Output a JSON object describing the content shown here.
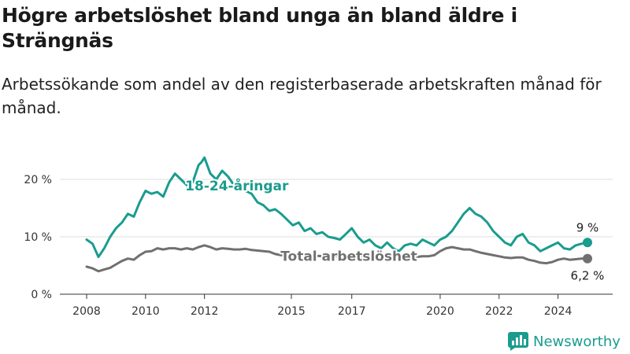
{
  "title": "Högre arbetslöshet bland unga än bland äldre i Strängnäs",
  "subtitle": "Arbetssökande som andel av den registerbaserade arbetskraften månad för månad.",
  "brand": {
    "name": "Newsworthy",
    "icon": "bar-chart-logo-icon",
    "color": "#1a9c8e"
  },
  "chart_data": {
    "type": "line",
    "x_ticks": [
      "2008",
      "2010",
      "2012",
      "2015",
      "2017",
      "2020",
      "2022",
      "2024"
    ],
    "x_tick_values": [
      2008.0,
      2010.0,
      2012.0,
      2014.95,
      2017.0,
      2020.0,
      2022.0,
      2024.0
    ],
    "x_range": [
      2008.0,
      2025.0
    ],
    "y_ticks": [
      "0 %",
      "10 %",
      "20 %"
    ],
    "y_tick_values": [
      0,
      10,
      20
    ],
    "ylim": [
      0,
      25
    ],
    "grid": true,
    "legend": "none",
    "series": [
      {
        "name": "18-24-åringar",
        "color": "#1a9c8e",
        "end_label": "9 %",
        "points": [
          [
            2008.0,
            9.5
          ],
          [
            2008.2,
            8.8
          ],
          [
            2008.4,
            6.5
          ],
          [
            2008.6,
            8.0
          ],
          [
            2008.8,
            10.0
          ],
          [
            2009.0,
            11.5
          ],
          [
            2009.2,
            12.5
          ],
          [
            2009.4,
            14.0
          ],
          [
            2009.6,
            13.5
          ],
          [
            2009.8,
            16.0
          ],
          [
            2010.0,
            18.0
          ],
          [
            2010.2,
            17.5
          ],
          [
            2010.4,
            17.8
          ],
          [
            2010.6,
            17.0
          ],
          [
            2010.8,
            19.5
          ],
          [
            2011.0,
            21.0
          ],
          [
            2011.2,
            20.0
          ],
          [
            2011.4,
            19.0
          ],
          [
            2011.6,
            19.5
          ],
          [
            2011.8,
            22.5
          ],
          [
            2011.9,
            23.0
          ],
          [
            2012.0,
            23.8
          ],
          [
            2012.2,
            21.0
          ],
          [
            2012.4,
            20.0
          ],
          [
            2012.6,
            21.5
          ],
          [
            2012.8,
            20.5
          ],
          [
            2013.0,
            19.0
          ],
          [
            2013.2,
            19.0
          ],
          [
            2013.4,
            18.0
          ],
          [
            2013.6,
            17.5
          ],
          [
            2013.8,
            16.0
          ],
          [
            2014.0,
            15.5
          ],
          [
            2014.2,
            14.5
          ],
          [
            2014.4,
            14.8
          ],
          [
            2014.6,
            14.0
          ],
          [
            2014.8,
            13.0
          ],
          [
            2015.0,
            12.0
          ],
          [
            2015.2,
            12.5
          ],
          [
            2015.4,
            11.0
          ],
          [
            2015.6,
            11.5
          ],
          [
            2015.8,
            10.5
          ],
          [
            2016.0,
            10.8
          ],
          [
            2016.2,
            10.0
          ],
          [
            2016.4,
            9.8
          ],
          [
            2016.6,
            9.5
          ],
          [
            2016.8,
            10.5
          ],
          [
            2017.0,
            11.5
          ],
          [
            2017.2,
            10.0
          ],
          [
            2017.4,
            9.0
          ],
          [
            2017.6,
            9.5
          ],
          [
            2017.8,
            8.5
          ],
          [
            2018.0,
            8.0
          ],
          [
            2018.2,
            9.0
          ],
          [
            2018.4,
            8.0
          ],
          [
            2018.6,
            7.5
          ],
          [
            2018.8,
            8.5
          ],
          [
            2019.0,
            8.8
          ],
          [
            2019.2,
            8.5
          ],
          [
            2019.4,
            9.5
          ],
          [
            2019.6,
            9.0
          ],
          [
            2019.8,
            8.5
          ],
          [
            2020.0,
            9.5
          ],
          [
            2020.2,
            10.0
          ],
          [
            2020.4,
            11.0
          ],
          [
            2020.6,
            12.5
          ],
          [
            2020.8,
            14.0
          ],
          [
            2021.0,
            15.0
          ],
          [
            2021.2,
            14.0
          ],
          [
            2021.4,
            13.5
          ],
          [
            2021.6,
            12.5
          ],
          [
            2021.8,
            11.0
          ],
          [
            2022.0,
            10.0
          ],
          [
            2022.2,
            9.0
          ],
          [
            2022.4,
            8.5
          ],
          [
            2022.6,
            10.0
          ],
          [
            2022.8,
            10.5
          ],
          [
            2023.0,
            9.0
          ],
          [
            2023.2,
            8.5
          ],
          [
            2023.4,
            7.5
          ],
          [
            2023.6,
            8.0
          ],
          [
            2023.8,
            8.5
          ],
          [
            2024.0,
            9.0
          ],
          [
            2024.2,
            8.0
          ],
          [
            2024.4,
            7.8
          ],
          [
            2024.6,
            8.5
          ],
          [
            2024.8,
            8.8
          ],
          [
            2025.0,
            9.0
          ]
        ]
      },
      {
        "name": "Total arbetslöshet",
        "color": "#707070",
        "end_label": "6,2 %",
        "points": [
          [
            2008.0,
            4.8
          ],
          [
            2008.2,
            4.5
          ],
          [
            2008.4,
            4.0
          ],
          [
            2008.6,
            4.3
          ],
          [
            2008.8,
            4.6
          ],
          [
            2009.0,
            5.2
          ],
          [
            2009.2,
            5.8
          ],
          [
            2009.4,
            6.2
          ],
          [
            2009.6,
            6.0
          ],
          [
            2009.8,
            6.8
          ],
          [
            2010.0,
            7.4
          ],
          [
            2010.2,
            7.5
          ],
          [
            2010.4,
            8.0
          ],
          [
            2010.6,
            7.8
          ],
          [
            2010.8,
            8.0
          ],
          [
            2011.0,
            8.0
          ],
          [
            2011.2,
            7.8
          ],
          [
            2011.4,
            8.0
          ],
          [
            2011.6,
            7.8
          ],
          [
            2011.8,
            8.2
          ],
          [
            2012.0,
            8.5
          ],
          [
            2012.2,
            8.2
          ],
          [
            2012.4,
            7.8
          ],
          [
            2012.6,
            8.0
          ],
          [
            2012.8,
            7.9
          ],
          [
            2013.0,
            7.8
          ],
          [
            2013.2,
            7.8
          ],
          [
            2013.4,
            7.9
          ],
          [
            2013.6,
            7.7
          ],
          [
            2013.8,
            7.6
          ],
          [
            2014.0,
            7.5
          ],
          [
            2014.2,
            7.4
          ],
          [
            2014.4,
            7.0
          ],
          [
            2014.6,
            6.8
          ],
          [
            2014.8,
            6.8
          ],
          [
            2015.0,
            6.8
          ],
          [
            2015.2,
            6.7
          ],
          [
            2015.4,
            6.8
          ],
          [
            2015.6,
            6.6
          ],
          [
            2015.8,
            6.7
          ],
          [
            2016.0,
            6.6
          ],
          [
            2016.2,
            6.8
          ],
          [
            2016.4,
            6.7
          ],
          [
            2016.6,
            6.5
          ],
          [
            2016.8,
            6.7
          ],
          [
            2017.0,
            6.9
          ],
          [
            2017.2,
            6.7
          ],
          [
            2017.4,
            6.5
          ],
          [
            2017.6,
            6.6
          ],
          [
            2017.8,
            6.5
          ],
          [
            2018.0,
            6.5
          ],
          [
            2018.2,
            6.4
          ],
          [
            2018.4,
            6.3
          ],
          [
            2018.6,
            6.2
          ],
          [
            2018.8,
            6.3
          ],
          [
            2019.0,
            6.4
          ],
          [
            2019.2,
            6.5
          ],
          [
            2019.4,
            6.6
          ],
          [
            2019.6,
            6.6
          ],
          [
            2019.8,
            6.8
          ],
          [
            2020.0,
            7.5
          ],
          [
            2020.2,
            8.0
          ],
          [
            2020.4,
            8.2
          ],
          [
            2020.6,
            8.0
          ],
          [
            2020.8,
            7.8
          ],
          [
            2021.0,
            7.8
          ],
          [
            2021.2,
            7.5
          ],
          [
            2021.4,
            7.2
          ],
          [
            2021.6,
            7.0
          ],
          [
            2021.8,
            6.8
          ],
          [
            2022.0,
            6.6
          ],
          [
            2022.2,
            6.4
          ],
          [
            2022.4,
            6.3
          ],
          [
            2022.6,
            6.4
          ],
          [
            2022.8,
            6.4
          ],
          [
            2023.0,
            6.0
          ],
          [
            2023.2,
            5.8
          ],
          [
            2023.4,
            5.5
          ],
          [
            2023.6,
            5.4
          ],
          [
            2023.8,
            5.6
          ],
          [
            2024.0,
            6.0
          ],
          [
            2024.2,
            6.2
          ],
          [
            2024.4,
            6.0
          ],
          [
            2024.6,
            6.1
          ],
          [
            2024.8,
            6.2
          ],
          [
            2025.0,
            6.2
          ]
        ]
      }
    ]
  }
}
